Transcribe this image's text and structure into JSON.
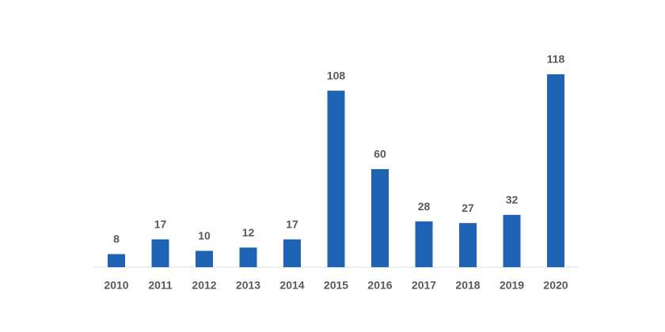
{
  "chart_data": {
    "type": "bar",
    "categories": [
      "2010",
      "2011",
      "2012",
      "2013",
      "2014",
      "2015",
      "2016",
      "2017",
      "2018",
      "2019",
      "2020"
    ],
    "values": [
      8,
      17,
      10,
      12,
      17,
      108,
      60,
      28,
      27,
      32,
      118
    ],
    "color": "#1f64b4"
  }
}
